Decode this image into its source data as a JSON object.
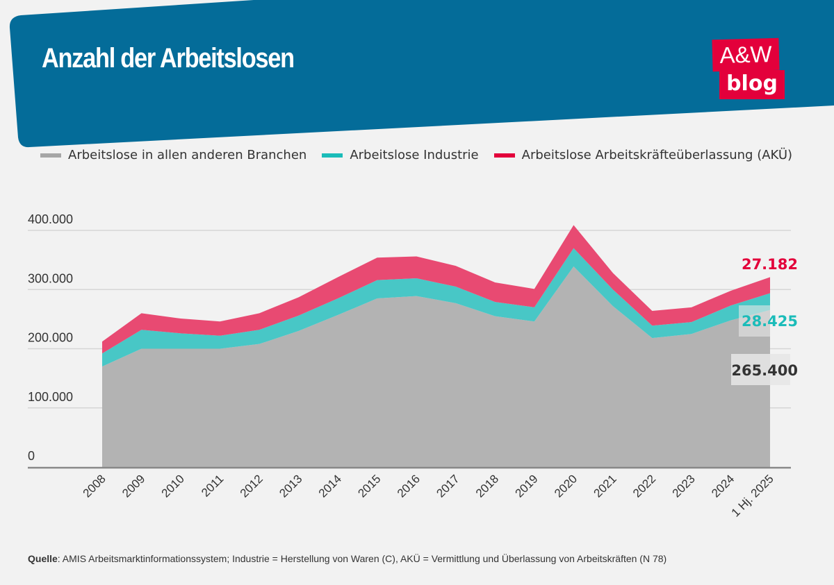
{
  "header": {
    "title": "Anzahl der Arbeitslosen",
    "bg_color": "#046c99"
  },
  "logo": {
    "line1": "A&W",
    "line2": "blog",
    "color": "#e3003b"
  },
  "source": {
    "label": "Quelle",
    "text": ": AMIS Arbeitsmarktinformationssystem; Industrie = Herstellung von Waren (C), AKÜ = Vermittlung und Überlassung von Arbeitskräften (N 78)"
  },
  "chart_data": {
    "type": "area",
    "stacked": true,
    "title": "Anzahl der Arbeitslosen",
    "categories": [
      "2008",
      "2009",
      "2010",
      "2011",
      "2012",
      "2013",
      "2014",
      "2015",
      "2016",
      "2017",
      "2018",
      "2019",
      "2020",
      "2021",
      "2022",
      "2023",
      "2024",
      "1 Hj. 2025"
    ],
    "ylim": [
      0,
      400000
    ],
    "yticks": [
      0,
      100000,
      200000,
      300000,
      400000
    ],
    "ytick_labels": [
      "0",
      "100.000",
      "200.000",
      "300.000",
      "400.000"
    ],
    "grid": true,
    "legend_position": "top",
    "series": [
      {
        "name": "Arbeitslose in allen anderen Branchen",
        "color": "#a6a6a6",
        "fill": "#b3b3b3",
        "values": [
          170000,
          200000,
          200000,
          200000,
          208000,
          230000,
          257000,
          285000,
          289000,
          277000,
          255000,
          246000,
          339000,
          272000,
          218000,
          225000,
          248000,
          265400
        ]
      },
      {
        "name": "Arbeitslose Industrie",
        "color": "#1bbcb9",
        "fill": "#48c7c6",
        "values": [
          22000,
          32000,
          26000,
          22000,
          24000,
          26000,
          28000,
          31000,
          30000,
          28000,
          24000,
          24000,
          31000,
          28000,
          21000,
          20000,
          25000,
          28425
        ]
      },
      {
        "name": "Arbeitslose Arbeitskräfteüberlassung (AKÜ)",
        "color": "#e3003b",
        "fill": "#e84a72",
        "values": [
          20000,
          28000,
          25000,
          24000,
          28000,
          31000,
          36000,
          38000,
          37000,
          35000,
          33000,
          31000,
          39000,
          28000,
          25000,
          25000,
          25000,
          27182
        ]
      }
    ],
    "end_labels": [
      "265.400",
      "28.425",
      "27.182"
    ]
  }
}
